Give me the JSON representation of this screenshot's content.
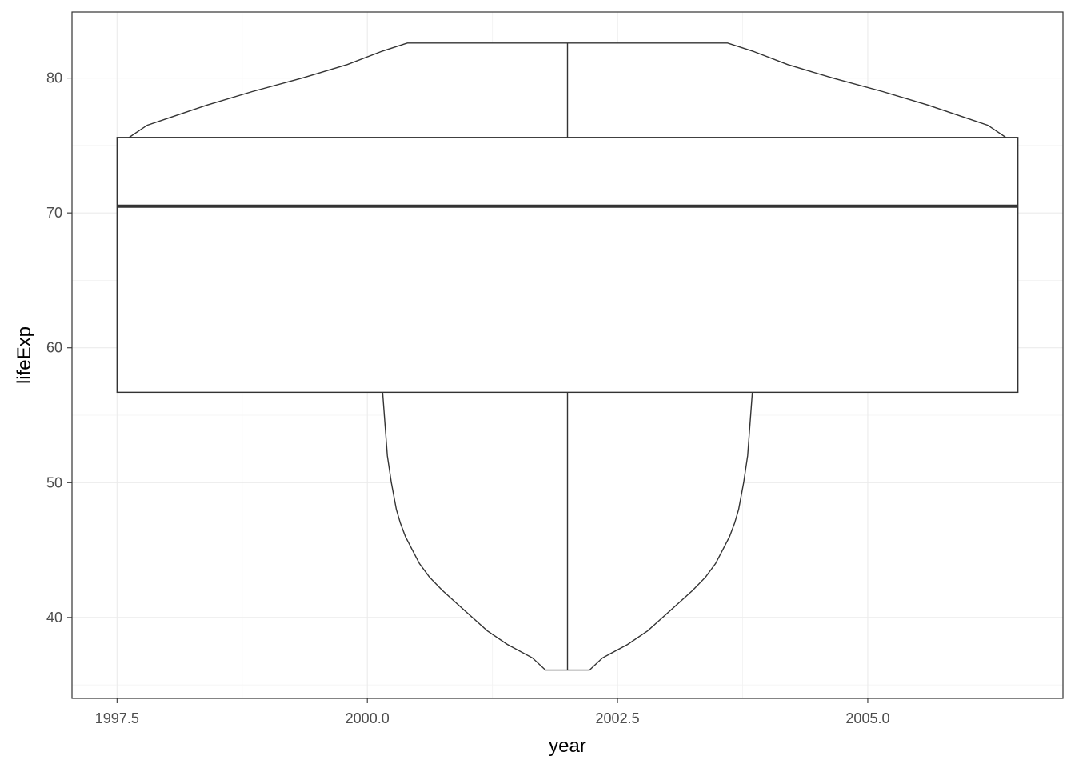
{
  "chart_data": {
    "type": "boxplot+violin",
    "xlabel": "year",
    "ylabel": "lifeExp",
    "x_ticks": [
      "1997.5",
      "2000.0",
      "2002.5",
      "2005.0"
    ],
    "x_tick_values": [
      1997.5,
      2000.0,
      2002.5,
      2005.0
    ],
    "y_ticks": [
      "40",
      "50",
      "60",
      "70",
      "80"
    ],
    "y_tick_values": [
      40,
      50,
      60,
      70,
      80
    ],
    "xlim": [
      1997.05,
      2006.95
    ],
    "ylim": [
      34.0,
      84.9
    ],
    "grid": true,
    "box": {
      "x": 2002,
      "x_range": [
        1997.5,
        2006.5
      ],
      "min": 36.1,
      "q1": 56.7,
      "median": 70.5,
      "q3": 75.6,
      "max": 82.6
    },
    "violin": {
      "x_center": 2002,
      "profile": [
        {
          "y": 36.1,
          "half_width": 0.22
        },
        {
          "y": 37.0,
          "half_width": 0.35
        },
        {
          "y": 38.0,
          "half_width": 0.6
        },
        {
          "y": 39.0,
          "half_width": 0.8
        },
        {
          "y": 40.0,
          "half_width": 0.95
        },
        {
          "y": 41.0,
          "half_width": 1.1
        },
        {
          "y": 42.0,
          "half_width": 1.25
        },
        {
          "y": 43.0,
          "half_width": 1.38
        },
        {
          "y": 44.0,
          "half_width": 1.48
        },
        {
          "y": 45.0,
          "half_width": 1.55
        },
        {
          "y": 46.0,
          "half_width": 1.62
        },
        {
          "y": 47.0,
          "half_width": 1.67
        },
        {
          "y": 48.0,
          "half_width": 1.71
        },
        {
          "y": 50.0,
          "half_width": 1.76
        },
        {
          "y": 52.0,
          "half_width": 1.8
        },
        {
          "y": 54.0,
          "half_width": 1.82
        },
        {
          "y": 56.0,
          "half_width": 1.84
        },
        {
          "y": 58.0,
          "half_width": 1.86
        },
        {
          "y": 60.0,
          "half_width": 1.9
        },
        {
          "y": 62.0,
          "half_width": 2.0
        },
        {
          "y": 64.0,
          "half_width": 2.2
        },
        {
          "y": 66.0,
          "half_width": 2.5
        },
        {
          "y": 68.0,
          "half_width": 2.9
        },
        {
          "y": 70.0,
          "half_width": 3.3
        },
        {
          "y": 72.0,
          "half_width": 3.8
        },
        {
          "y": 74.0,
          "half_width": 4.2
        },
        {
          "y": 75.5,
          "half_width": 4.4
        },
        {
          "y": 76.5,
          "half_width": 4.2
        },
        {
          "y": 77.0,
          "half_width": 4.0
        },
        {
          "y": 78.0,
          "half_width": 3.6
        },
        {
          "y": 79.0,
          "half_width": 3.15
        },
        {
          "y": 80.0,
          "half_width": 2.65
        },
        {
          "y": 81.0,
          "half_width": 2.2
        },
        {
          "y": 82.0,
          "half_width": 1.85
        },
        {
          "y": 82.6,
          "half_width": 1.6
        }
      ]
    }
  }
}
